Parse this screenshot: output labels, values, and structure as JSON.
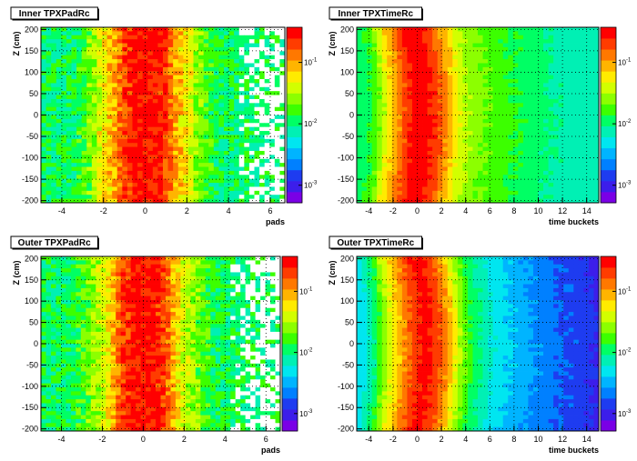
{
  "chart_data": [
    {
      "type": "heatmap",
      "title": "Inner TPXPadRc",
      "xlabel": "pads",
      "ylabel": "Z (cm)",
      "xlim": [
        -5,
        6.7
      ],
      "ylim": [
        -205,
        205
      ],
      "x_ticks": [
        "-4",
        "-2",
        "0",
        "2",
        "4",
        "6"
      ],
      "y_ticks": [
        "-200",
        "-150",
        "-100",
        "-50",
        "0",
        "50",
        "100",
        "150",
        "200"
      ],
      "z_scale": "log",
      "z_tick_labels": [
        "10",
        "10",
        "10"
      ],
      "z_tick_exponents": [
        "-1",
        "-2",
        "-3"
      ],
      "palette": [
        "#7a00e6",
        "#3c1eea",
        "#1e3cf0",
        "#0080ff",
        "#00b4ff",
        "#00e6f0",
        "#00f0b4",
        "#00ff64",
        "#3cff00",
        "#8cff00",
        "#d2ff00",
        "#ffeb00",
        "#ffb400",
        "#ff7800",
        "#ff3c00",
        "#ff0000"
      ],
      "x_profile": [
        {
          "x": -5.0,
          "level": 7
        },
        {
          "x": -3.5,
          "level": 7
        },
        {
          "x": -2.5,
          "level": 9
        },
        {
          "x": -2.0,
          "level": 11
        },
        {
          "x": -1.5,
          "level": 12
        },
        {
          "x": -1.0,
          "level": 14
        },
        {
          "x": -0.5,
          "level": 15
        },
        {
          "x": 0.0,
          "level": 15
        },
        {
          "x": 0.5,
          "level": 15
        },
        {
          "x": 1.0,
          "level": 14
        },
        {
          "x": 1.5,
          "level": 12
        },
        {
          "x": 2.0,
          "level": 11
        },
        {
          "x": 2.5,
          "level": 9
        },
        {
          "x": 3.5,
          "level": 7
        },
        {
          "x": 5.5,
          "level": 7
        },
        {
          "x": 6.7,
          "level": 7
        }
      ],
      "noise": 1.3,
      "sparse_from_x": 4.6,
      "curvature_x": 0
    },
    {
      "type": "heatmap",
      "title": "Inner TPXTimeRc",
      "xlabel": "time buckets",
      "ylabel": "Z (cm)",
      "xlim": [
        -5,
        15
      ],
      "ylim": [
        -205,
        205
      ],
      "x_ticks": [
        "-4",
        "-2",
        "0",
        "2",
        "4",
        "6",
        "8",
        "10",
        "12",
        "14"
      ],
      "y_ticks": [
        "-200",
        "-150",
        "-100",
        "-50",
        "0",
        "50",
        "100",
        "150",
        "200"
      ],
      "z_scale": "log",
      "z_tick_labels": [
        "10",
        "10",
        "10"
      ],
      "z_tick_exponents": [
        "-1",
        "-2",
        "-3"
      ],
      "palette": [
        "#7a00e6",
        "#3c1eea",
        "#1e3cf0",
        "#0080ff",
        "#00b4ff",
        "#00e6f0",
        "#00f0b4",
        "#00ff64",
        "#3cff00",
        "#8cff00",
        "#d2ff00",
        "#ffeb00",
        "#ffb400",
        "#ff7800",
        "#ff3c00",
        "#ff0000"
      ],
      "x_profile": [
        {
          "x": -5.0,
          "level": 7
        },
        {
          "x": -4.0,
          "level": 8
        },
        {
          "x": -3.0,
          "level": 11
        },
        {
          "x": -2.0,
          "level": 13
        },
        {
          "x": -1.0,
          "level": 15
        },
        {
          "x": 0.0,
          "level": 15
        },
        {
          "x": 1.0,
          "level": 14
        },
        {
          "x": 2.0,
          "level": 12
        },
        {
          "x": 3.0,
          "level": 10
        },
        {
          "x": 4.0,
          "level": 9
        },
        {
          "x": 6.0,
          "level": 8
        },
        {
          "x": 9.0,
          "level": 7
        },
        {
          "x": 12.0,
          "level": 6
        },
        {
          "x": 15.0,
          "level": 6
        }
      ],
      "noise": 0.35,
      "sparse_from_x": null,
      "curvature_x": 0.7
    },
    {
      "type": "heatmap",
      "title": "Outer TPXPadRc",
      "xlabel": "pads",
      "ylabel": "Z (cm)",
      "xlim": [
        -5,
        6.7
      ],
      "ylim": [
        -205,
        205
      ],
      "x_ticks": [
        "-4",
        "-2",
        "0",
        "2",
        "4",
        "6"
      ],
      "y_ticks": [
        "-200",
        "-150",
        "-100",
        "-50",
        "0",
        "50",
        "100",
        "150",
        "200"
      ],
      "z_scale": "log",
      "z_tick_labels": [
        "10",
        "10",
        "10"
      ],
      "z_tick_exponents": [
        "-1",
        "-2",
        "-3"
      ],
      "palette": [
        "#7a00e6",
        "#3c1eea",
        "#1e3cf0",
        "#0080ff",
        "#00b4ff",
        "#00e6f0",
        "#00f0b4",
        "#00ff64",
        "#3cff00",
        "#8cff00",
        "#d2ff00",
        "#ffeb00",
        "#ffb400",
        "#ff7800",
        "#ff3c00",
        "#ff0000"
      ],
      "x_profile": [
        {
          "x": -5.0,
          "level": 7
        },
        {
          "x": -3.5,
          "level": 7
        },
        {
          "x": -2.5,
          "level": 9
        },
        {
          "x": -2.0,
          "level": 10
        },
        {
          "x": -1.5,
          "level": 12
        },
        {
          "x": -1.0,
          "level": 14
        },
        {
          "x": -0.5,
          "level": 15
        },
        {
          "x": 0.0,
          "level": 15
        },
        {
          "x": 0.5,
          "level": 15
        },
        {
          "x": 1.0,
          "level": 14
        },
        {
          "x": 1.5,
          "level": 12
        },
        {
          "x": 2.0,
          "level": 10
        },
        {
          "x": 2.5,
          "level": 9
        },
        {
          "x": 3.5,
          "level": 7
        },
        {
          "x": 5.5,
          "level": 7
        },
        {
          "x": 6.7,
          "level": 7
        }
      ],
      "noise": 1.3,
      "sparse_from_x": 4.2,
      "curvature_x": 0
    },
    {
      "type": "heatmap",
      "title": "Outer TPXTimeRc",
      "xlabel": "time buckets",
      "ylabel": "Z (cm)",
      "xlim": [
        -5,
        15
      ],
      "ylim": [
        -205,
        205
      ],
      "x_ticks": [
        "-4",
        "-2",
        "0",
        "2",
        "4",
        "6",
        "8",
        "10",
        "12",
        "14"
      ],
      "y_ticks": [
        "-200",
        "-150",
        "-100",
        "-50",
        "0",
        "50",
        "100",
        "150",
        "200"
      ],
      "z_scale": "log",
      "z_tick_labels": [
        "10",
        "10",
        "10"
      ],
      "z_tick_exponents": [
        "-1",
        "-2",
        "-3"
      ],
      "palette": [
        "#7a00e6",
        "#3c1eea",
        "#1e3cf0",
        "#0080ff",
        "#00b4ff",
        "#00e6f0",
        "#00f0b4",
        "#00ff64",
        "#3cff00",
        "#8cff00",
        "#d2ff00",
        "#ffeb00",
        "#ffb400",
        "#ff7800",
        "#ff3c00",
        "#ff0000"
      ],
      "x_profile": [
        {
          "x": -5.0,
          "level": 5
        },
        {
          "x": -4.0,
          "level": 7
        },
        {
          "x": -3.0,
          "level": 10
        },
        {
          "x": -2.0,
          "level": 12
        },
        {
          "x": -1.0,
          "level": 14
        },
        {
          "x": 0.0,
          "level": 15
        },
        {
          "x": 1.0,
          "level": 14
        },
        {
          "x": 2.0,
          "level": 12
        },
        {
          "x": 3.0,
          "level": 9
        },
        {
          "x": 4.0,
          "level": 7
        },
        {
          "x": 6.0,
          "level": 5
        },
        {
          "x": 8.0,
          "level": 4
        },
        {
          "x": 10.0,
          "level": 3
        },
        {
          "x": 13.0,
          "level": 2
        },
        {
          "x": 15.0,
          "level": 1
        }
      ],
      "noise": 0.35,
      "sparse_from_x": null,
      "curvature_x": 0.7
    }
  ]
}
